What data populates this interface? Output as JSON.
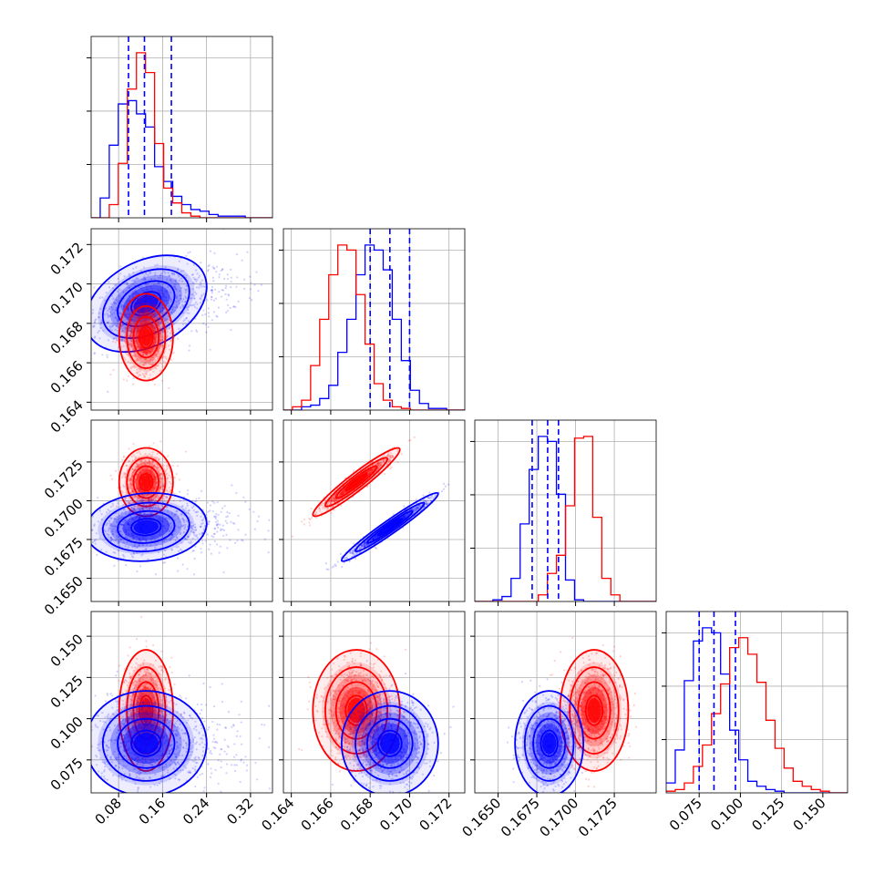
{
  "chart_data": {
    "type": "corner",
    "title": "",
    "colors": {
      "blue": "#0000ff",
      "red": "#ff0000"
    },
    "grid": true,
    "dimensions": [
      {
        "index": 0,
        "range": [
          0.03,
          0.36
        ],
        "ticks": [
          0.08,
          0.16,
          0.24,
          0.32
        ],
        "tick_labels": [
          "0.08",
          "0.16",
          "0.24",
          "0.32"
        ]
      },
      {
        "index": 1,
        "range": [
          0.1636,
          0.1728
        ],
        "ticks": [
          0.164,
          0.166,
          0.168,
          0.17,
          0.172
        ],
        "tick_labels": [
          "0.164",
          "0.166",
          "0.168",
          "0.170",
          "0.172"
        ]
      },
      {
        "index": 2,
        "range": [
          0.1635,
          0.1752
        ],
        "ticks": [
          0.165,
          0.1675,
          0.17,
          0.1725
        ],
        "tick_labels": [
          "0.1650",
          "0.1675",
          "0.1700",
          "0.1725"
        ]
      },
      {
        "index": 3,
        "range": [
          0.055,
          0.165
        ],
        "ticks": [
          0.075,
          0.1,
          0.125,
          0.15
        ],
        "tick_labels": [
          "0.075",
          "0.100",
          "0.125",
          "0.150"
        ]
      }
    ],
    "quantile_lines": {
      "color": "#0000ff",
      "style": "dashed",
      "values": [
        [
          0.098,
          0.127,
          0.176
        ],
        [
          0.168,
          0.169,
          0.17
        ],
        [
          0.1672,
          0.1682,
          0.1689
        ],
        [
          0.075,
          0.084,
          0.097
        ]
      ]
    },
    "series": [
      {
        "color": "#0000ff",
        "mean": [
          0.13,
          0.169,
          0.1683,
          0.085
        ],
        "sd": [
          0.045,
          0.001,
          0.0009,
          0.013
        ],
        "correlations": [
          [
            0,
            1,
            0.35
          ],
          [
            1,
            2,
            0.97
          ],
          [
            0,
            2,
            0.1
          ]
        ],
        "histograms": [
          [
            0,
            0.12,
            0.44,
            0.69,
            0.71,
            0.63,
            0.55,
            0.31,
            0.22,
            0.13,
            0.08,
            0.05,
            0.04,
            0.02,
            0.01,
            0.01,
            0.01,
            0,
            0,
            0
          ],
          [
            0,
            0,
            0.02,
            0.03,
            0.07,
            0.15,
            0.35,
            0.55,
            0.82,
            1.0,
            0.97,
            0.85,
            0.55,
            0.3,
            0.12,
            0.04,
            0.01,
            0.01,
            0,
            0
          ],
          [
            0,
            0,
            0.01,
            0.03,
            0.14,
            0.47,
            0.8,
            1.0,
            0.97,
            0.65,
            0.13,
            0.01,
            0,
            0,
            0,
            0,
            0,
            0,
            0,
            0
          ],
          [
            0.06,
            0.26,
            0.68,
            0.92,
            1.0,
            0.97,
            0.72,
            0.38,
            0.2,
            0.07,
            0.04,
            0.02,
            0.01,
            0,
            0,
            0,
            0,
            0,
            0,
            0
          ]
        ]
      },
      {
        "color": "#ff0000",
        "mean": [
          0.13,
          0.1673,
          0.1712,
          0.105
        ],
        "sd": [
          0.02,
          0.0009,
          0.0009,
          0.015
        ],
        "correlations": [
          [
            1,
            2,
            0.95
          ]
        ],
        "histograms": [
          [
            0,
            0,
            0.08,
            0.33,
            0.78,
            1.0,
            0.88,
            0.45,
            0.18,
            0.09,
            0.03,
            0.01,
            0,
            0,
            0,
            0,
            0,
            0,
            0,
            0
          ],
          [
            0,
            0.02,
            0.06,
            0.27,
            0.55,
            0.82,
            1.0,
            0.97,
            0.7,
            0.4,
            0.16,
            0.06,
            0.02,
            0.01,
            0,
            0,
            0,
            0,
            0,
            0
          ],
          [
            0,
            0,
            0,
            0,
            0,
            0,
            0,
            0.04,
            0.17,
            0.28,
            0.58,
            0.99,
            1.0,
            0.51,
            0.14,
            0.04,
            0,
            0,
            0,
            0
          ],
          [
            0.01,
            0.02,
            0.06,
            0.16,
            0.29,
            0.48,
            0.66,
            0.88,
            0.94,
            0.84,
            0.67,
            0.44,
            0.27,
            0.15,
            0.07,
            0.04,
            0.02,
            0.01,
            0,
            0
          ]
        ]
      }
    ]
  }
}
